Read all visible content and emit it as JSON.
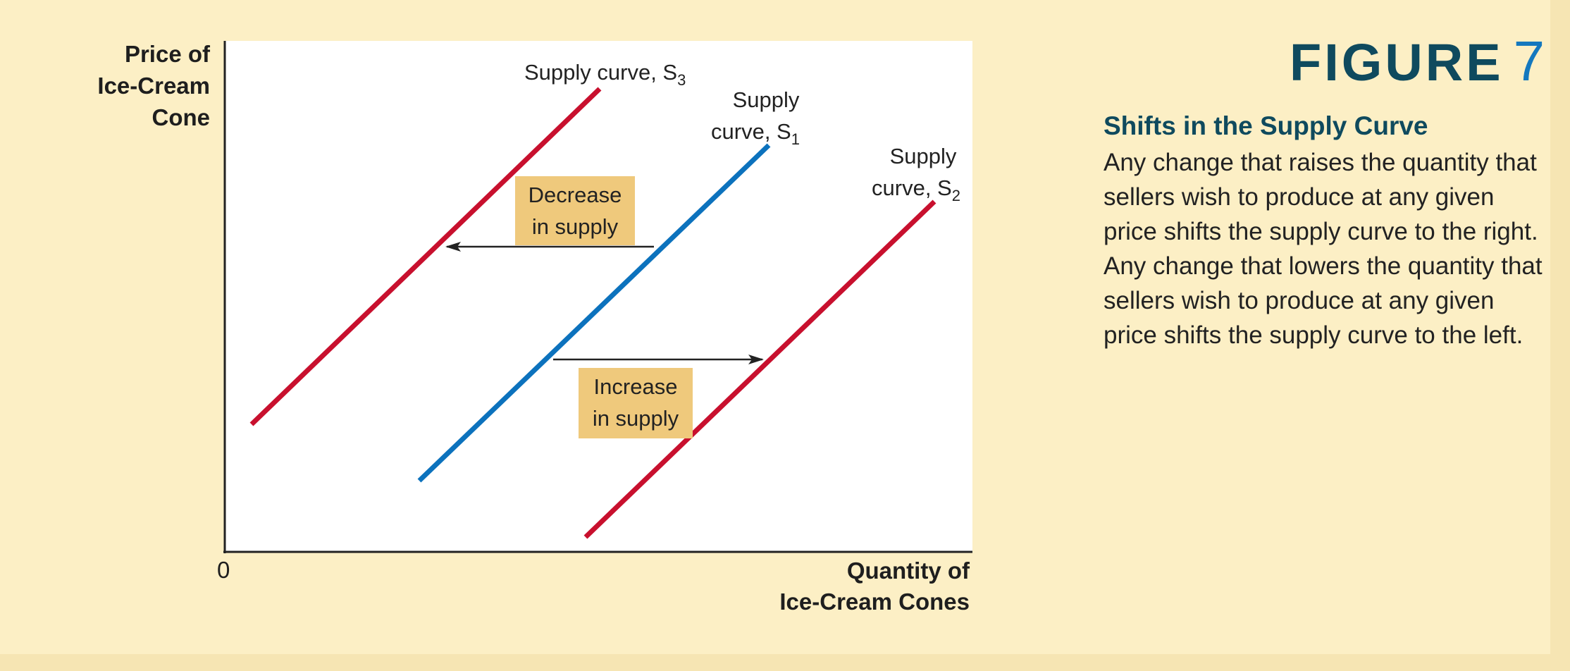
{
  "figure": {
    "label": "FIGURE",
    "number": "7",
    "caption_heading": "Shifts in the Supply Curve",
    "caption_body": "Any change that raises the quantity that sellers wish to produce at any given price shifts the supply curve to the right. Any change that lowers the quantity that sellers wish to produce at any given price shifts the supply curve to the left."
  },
  "axes": {
    "y_title": "Price of Ice-Cream Cone",
    "y_title_lines": [
      "Price of",
      "Ice-Cream",
      "Cone"
    ],
    "x_title_lines": [
      "Quantity of",
      "Ice-Cream Cones"
    ],
    "origin": "0"
  },
  "curves": [
    {
      "id": "S3",
      "label_prefix": "Supply curve, S",
      "subscript": "3",
      "color": "#c8102e"
    },
    {
      "id": "S1",
      "label_lines": [
        "Supply",
        "curve, S"
      ],
      "subscript": "1",
      "color": "#0c72bd"
    },
    {
      "id": "S2",
      "label_lines": [
        "Supply",
        "curve, S"
      ],
      "subscript": "2",
      "color": "#c8102e"
    }
  ],
  "shift_boxes": {
    "decrease_lines": [
      "Decrease",
      "in supply"
    ],
    "increase_lines": [
      "Increase",
      "in supply"
    ],
    "box_color": "#efc97c"
  }
}
